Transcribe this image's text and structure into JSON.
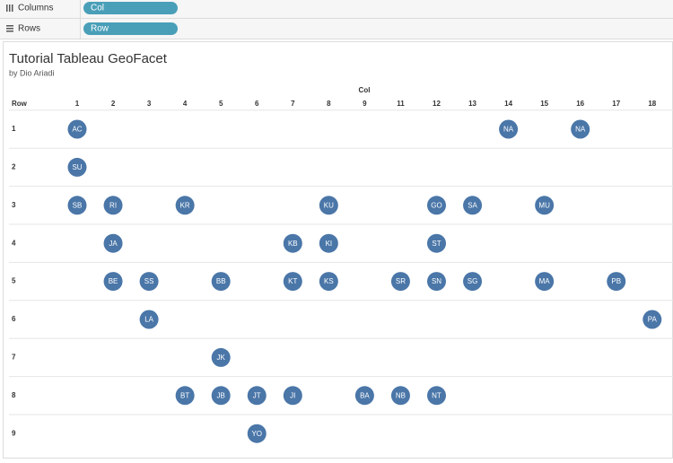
{
  "shelves": {
    "columns": {
      "label": "Columns",
      "pill": "Col"
    },
    "rows": {
      "label": "Rows",
      "pill": "Row"
    }
  },
  "chart_data": {
    "type": "scatter",
    "title": "Tutorial Tableau GeoFacet",
    "subtitle": "by Dio Ariadi",
    "x_label": "Col",
    "y_label": "Row",
    "color": "#4a76a8",
    "columns": [
      1,
      2,
      3,
      4,
      5,
      6,
      7,
      8,
      9,
      11,
      12,
      13,
      14,
      15,
      16,
      17,
      18
    ],
    "rows": [
      1,
      2,
      3,
      4,
      5,
      6,
      7,
      8,
      9
    ],
    "points": [
      {
        "x": 1,
        "y": 1,
        "label": "AC"
      },
      {
        "x": 14,
        "y": 1,
        "label": "NA"
      },
      {
        "x": 16,
        "y": 1,
        "label": "NA"
      },
      {
        "x": 1,
        "y": 2,
        "label": "SU"
      },
      {
        "x": 1,
        "y": 3,
        "label": "SB"
      },
      {
        "x": 2,
        "y": 3,
        "label": "RI"
      },
      {
        "x": 4,
        "y": 3,
        "label": "KR"
      },
      {
        "x": 8,
        "y": 3,
        "label": "KU"
      },
      {
        "x": 12,
        "y": 3,
        "label": "GO"
      },
      {
        "x": 13,
        "y": 3,
        "label": "SA"
      },
      {
        "x": 15,
        "y": 3,
        "label": "MU"
      },
      {
        "x": 2,
        "y": 4,
        "label": "JA"
      },
      {
        "x": 7,
        "y": 4,
        "label": "KB"
      },
      {
        "x": 8,
        "y": 4,
        "label": "KI"
      },
      {
        "x": 12,
        "y": 4,
        "label": "ST"
      },
      {
        "x": 2,
        "y": 5,
        "label": "BE"
      },
      {
        "x": 3,
        "y": 5,
        "label": "SS"
      },
      {
        "x": 5,
        "y": 5,
        "label": "BB"
      },
      {
        "x": 7,
        "y": 5,
        "label": "KT"
      },
      {
        "x": 8,
        "y": 5,
        "label": "KS"
      },
      {
        "x": 11,
        "y": 5,
        "label": "SR"
      },
      {
        "x": 12,
        "y": 5,
        "label": "SN"
      },
      {
        "x": 13,
        "y": 5,
        "label": "SG"
      },
      {
        "x": 15,
        "y": 5,
        "label": "MA"
      },
      {
        "x": 17,
        "y": 5,
        "label": "PB"
      },
      {
        "x": 3,
        "y": 6,
        "label": "LA"
      },
      {
        "x": 18,
        "y": 6,
        "label": "PA"
      },
      {
        "x": 5,
        "y": 7,
        "label": "JK"
      },
      {
        "x": 4,
        "y": 8,
        "label": "BT"
      },
      {
        "x": 5,
        "y": 8,
        "label": "JB"
      },
      {
        "x": 6,
        "y": 8,
        "label": "JT"
      },
      {
        "x": 7,
        "y": 8,
        "label": "JI"
      },
      {
        "x": 9,
        "y": 8,
        "label": "BA"
      },
      {
        "x": 11,
        "y": 8,
        "label": "NB"
      },
      {
        "x": 12,
        "y": 8,
        "label": "NT"
      },
      {
        "x": 6,
        "y": 9,
        "label": "YO"
      }
    ]
  }
}
